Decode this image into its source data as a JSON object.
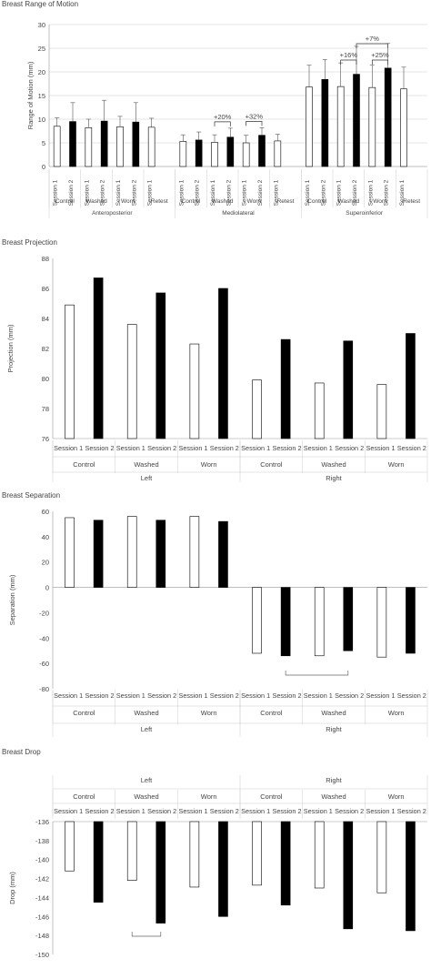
{
  "colors": {
    "open_bar": "#ffffff",
    "filled_bar": "#000000",
    "axis": "#999999",
    "grid": "#cccccc"
  },
  "chart_data": [
    {
      "type": "bar",
      "title": "Breast Range of Motion",
      "ylabel": "Range of Motion (mm)",
      "ylim": [
        0,
        30
      ],
      "yticks": [
        0,
        5,
        10,
        15,
        20,
        25,
        30
      ],
      "session_labels": [
        "Session 1",
        "Session 2"
      ],
      "conditions": [
        "Control",
        "Washed",
        "Worn",
        "Retest"
      ],
      "directions": [
        "Anteroposterior",
        "Mediolateral",
        "Superoinferior"
      ],
      "groups": [
        {
          "direction": "Anteroposterior",
          "condition": "Control",
          "values": [
            8.5,
            9.5
          ],
          "errors": [
            1.8,
            4.0
          ]
        },
        {
          "direction": "Anteroposterior",
          "condition": "Washed",
          "values": [
            8.2,
            9.6
          ],
          "errors": [
            1.8,
            4.4
          ]
        },
        {
          "direction": "Anteroposterior",
          "condition": "Worn",
          "values": [
            8.4,
            9.4
          ],
          "errors": [
            2.2,
            4.1
          ]
        },
        {
          "direction": "Anteroposterior",
          "condition": "Retest",
          "values": [
            8.3
          ],
          "errors": [
            1.9
          ]
        },
        {
          "direction": "Mediolateral",
          "condition": "Control",
          "values": [
            5.3,
            5.6
          ],
          "errors": [
            1.4,
            1.7
          ]
        },
        {
          "direction": "Mediolateral",
          "condition": "Washed",
          "values": [
            5.1,
            6.2
          ],
          "errors": [
            1.6,
            1.9
          ]
        },
        {
          "direction": "Mediolateral",
          "condition": "Worn",
          "values": [
            5.0,
            6.6
          ],
          "errors": [
            1.6,
            1.6
          ]
        },
        {
          "direction": "Mediolateral",
          "condition": "Retest",
          "values": [
            5.4
          ],
          "errors": [
            1.4
          ]
        },
        {
          "direction": "Superoinferior",
          "condition": "Control",
          "values": [
            16.8,
            18.4
          ],
          "errors": [
            4.6,
            4.2
          ]
        },
        {
          "direction": "Superoinferior",
          "condition": "Washed",
          "values": [
            16.9,
            19.5
          ],
          "errors": [
            5.0,
            5.9
          ]
        },
        {
          "direction": "Superoinferior",
          "condition": "Worn",
          "values": [
            16.7,
            20.8
          ],
          "errors": [
            4.7,
            5.2
          ]
        },
        {
          "direction": "Superoinferior",
          "condition": "Retest",
          "values": [
            16.4
          ],
          "errors": [
            4.6
          ]
        }
      ],
      "annotations": [
        {
          "label": "+20%",
          "group": 5
        },
        {
          "label": "+32%",
          "group": 6
        },
        {
          "label": "+16%",
          "group": 9
        },
        {
          "label": "+25%",
          "group": 10
        },
        {
          "label": "+7%",
          "span_groups": [
            9,
            10
          ]
        }
      ]
    },
    {
      "type": "bar",
      "title": "Breast Projection",
      "ylabel": "Projection (mm)",
      "ylim": [
        76,
        88
      ],
      "yticks": [
        76,
        78,
        80,
        82,
        84,
        86,
        88
      ],
      "session_labels": [
        "Session 1",
        "Session 2"
      ],
      "conditions": [
        "Control",
        "Washed",
        "Worn",
        "Control",
        "Washed",
        "Worn"
      ],
      "sides": [
        "Left",
        "Right"
      ],
      "values": [
        [
          84.9,
          86.7
        ],
        [
          83.6,
          85.7
        ],
        [
          82.3,
          86.0
        ],
        [
          79.9,
          82.6
        ],
        [
          79.7,
          82.5
        ],
        [
          79.6,
          83.0
        ]
      ]
    },
    {
      "type": "bar",
      "title": "Breast Separation",
      "ylabel": "Separation (mm)",
      "ylim": [
        -80,
        60
      ],
      "yticks": [
        -80,
        -60,
        -40,
        -20,
        0,
        20,
        40,
        60
      ],
      "session_labels": [
        "Session 1",
        "Session 2"
      ],
      "conditions": [
        "Control",
        "Washed",
        "Worn",
        "Control",
        "Washed",
        "Worn"
      ],
      "sides": [
        "Left",
        "Right"
      ],
      "values": [
        [
          55,
          53
        ],
        [
          56,
          53
        ],
        [
          56,
          52
        ],
        [
          -52,
          -54
        ],
        [
          -54,
          -50
        ],
        [
          -55,
          -52
        ]
      ],
      "bracket_groups": [
        3,
        4
      ]
    },
    {
      "type": "bar",
      "title": "Breast Drop",
      "ylabel": "Drop (mm)",
      "ylim": [
        -150,
        -136
      ],
      "yticks": [
        -150,
        -148,
        -146,
        -144,
        -142,
        -140,
        -138,
        -136
      ],
      "session_labels": [
        "Session 1",
        "Session 2"
      ],
      "conditions": [
        "Control",
        "Washed",
        "Worn",
        "Control",
        "Washed",
        "Worn"
      ],
      "sides": [
        "Left",
        "Right"
      ],
      "values": [
        [
          -141.2,
          -144.5
        ],
        [
          -142.2,
          -146.7
        ],
        [
          -142.9,
          -146.0
        ],
        [
          -142.7,
          -144.8
        ],
        [
          -143.0,
          -147.3
        ],
        [
          -143.5,
          -147.5
        ]
      ],
      "bracket_groups": [
        1
      ]
    }
  ]
}
